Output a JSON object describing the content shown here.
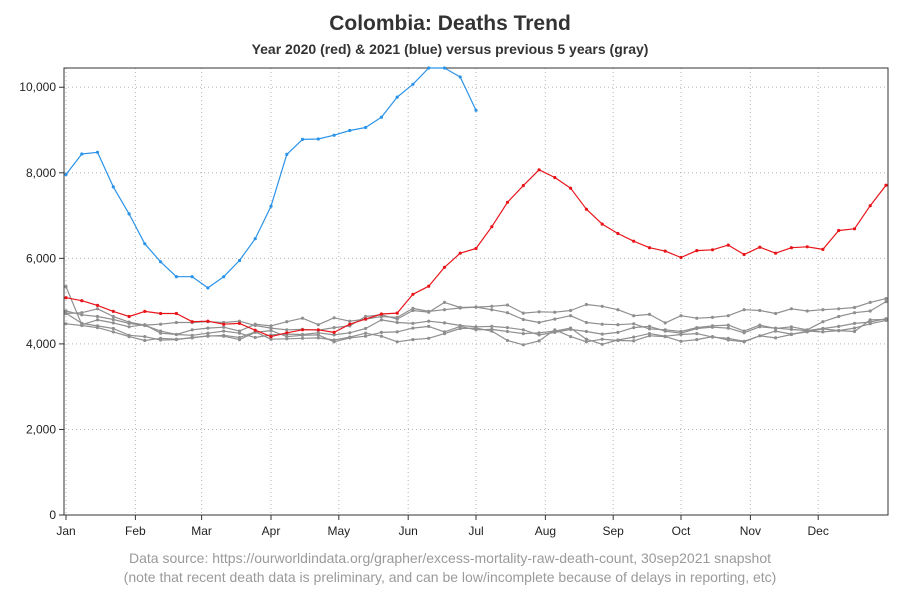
{
  "chart_data": {
    "type": "line",
    "title": "Colombia: Deaths Trend",
    "subtitle": "Year 2020 (red) & 2021 (blue) versus previous 5 years (gray)",
    "xlabel": "",
    "ylabel": "",
    "x_unit": "week of year",
    "xlim": [
      1,
      53
    ],
    "ylim": [
      0,
      10450
    ],
    "y_ticks": [
      0,
      2000,
      4000,
      6000,
      8000,
      10000
    ],
    "y_tick_labels": [
      "0",
      "2,000",
      "4,000",
      "6,000",
      "8,000",
      "10,000"
    ],
    "x_ticks": [
      1,
      5.4,
      9.6,
      14,
      18.3,
      22.7,
      27,
      31.4,
      35.7,
      40,
      44.4,
      48.7
    ],
    "x_tick_labels": [
      "Jan",
      "Feb",
      "Mar",
      "Apr",
      "May",
      "Jun",
      "Jul",
      "Aug",
      "Sep",
      "Oct",
      "Nov",
      "Dec"
    ],
    "grid": true,
    "colors": {
      "y2020": "#e8141a",
      "y2021": "#2b93e8",
      "previous": "#8f8f8f",
      "grid": "#b5b5b5"
    },
    "series": [
      {
        "name": "2021",
        "color_key": "y2021",
        "x_start": 1,
        "values": [
          7960,
          8440,
          8480,
          7670,
          7040,
          6340,
          5920,
          5570,
          5570,
          5310,
          5570,
          5950,
          6460,
          7220,
          8430,
          8780,
          8790,
          8880,
          8990,
          9060,
          9300,
          9770,
          10070,
          10450,
          10450,
          10240,
          9460
        ]
      },
      {
        "name": "2020",
        "color_key": "y2020",
        "x_start": 1,
        "values": [
          5080,
          5010,
          4900,
          4760,
          4640,
          4760,
          4710,
          4710,
          4520,
          4530,
          4460,
          4480,
          4320,
          4170,
          4260,
          4330,
          4330,
          4270,
          4460,
          4580,
          4700,
          4720,
          5160,
          5350,
          5790,
          6120,
          6230,
          6740,
          7310,
          7700,
          8070,
          7890,
          7640,
          7150,
          6800,
          6580,
          6400,
          6250,
          6170,
          6020,
          6180,
          6200,
          6310,
          6090,
          6260,
          6120,
          6250,
          6270,
          6210,
          6650,
          6690,
          7230,
          7710
        ]
      },
      {
        "name": "previous year 1",
        "color_key": "previous",
        "x_start": 1,
        "values": [
          5340,
          4450,
          4560,
          4490,
          4400,
          4450,
          4250,
          4220,
          4330,
          4370,
          4390,
          4300,
          4460,
          4420,
          4520,
          4600,
          4450,
          4610,
          4530,
          4580,
          4640,
          4620,
          4830,
          4760,
          4800,
          4840,
          4860,
          4880,
          4910,
          4720,
          4750,
          4740,
          4780,
          4920,
          4880,
          4800,
          4660,
          4690,
          4490,
          4660,
          4600,
          4620,
          4660,
          4800,
          4780,
          4710,
          4820,
          4770,
          4800,
          4820,
          4850,
          4970,
          5060
        ]
      },
      {
        "name": "previous year 2",
        "color_key": "previous",
        "x_start": 1,
        "values": [
          4710,
          4730,
          4820,
          4640,
          4510,
          4440,
          4460,
          4500,
          4500,
          4520,
          4500,
          4530,
          4430,
          4370,
          4330,
          4340,
          4320,
          4380,
          4420,
          4640,
          4680,
          4580,
          4780,
          4740,
          4970,
          4850,
          4860,
          4800,
          4730,
          4570,
          4500,
          4580,
          4660,
          4500,
          4460,
          4450,
          4470,
          4350,
          4330,
          4290,
          4380,
          4420,
          4440,
          4300,
          4440,
          4360,
          4400,
          4330,
          4520,
          4640,
          4730,
          4770,
          4990
        ]
      },
      {
        "name": "previous year 3",
        "color_key": "previous",
        "x_start": 1,
        "values": [
          4770,
          4680,
          4640,
          4570,
          4480,
          4430,
          4300,
          4220,
          4200,
          4250,
          4300,
          4250,
          4150,
          4210,
          4230,
          4220,
          4260,
          4210,
          4260,
          4360,
          4560,
          4500,
          4480,
          4530,
          4490,
          4430,
          4400,
          4410,
          4380,
          4330,
          4210,
          4270,
          4340,
          4290,
          4230,
          4270,
          4380,
          4410,
          4300,
          4250,
          4360,
          4390,
          4370,
          4260,
          4400,
          4370,
          4340,
          4310,
          4360,
          4410,
          4480,
          4510,
          4590
        ]
      },
      {
        "name": "previous year 4",
        "color_key": "previous",
        "x_start": 1,
        "values": [
          4720,
          4480,
          4420,
          4360,
          4200,
          4170,
          4090,
          4100,
          4150,
          4180,
          4200,
          4150,
          4280,
          4110,
          4120,
          4130,
          4140,
          4090,
          4160,
          4250,
          4180,
          4050,
          4100,
          4130,
          4240,
          4360,
          4370,
          4300,
          4080,
          3980,
          4070,
          4330,
          4170,
          4050,
          4110,
          4080,
          4070,
          4190,
          4170,
          4060,
          4100,
          4170,
          4090,
          4050,
          4190,
          4300,
          4230,
          4280,
          4350,
          4310,
          4290,
          4560,
          4570
        ]
      },
      {
        "name": "previous year 5",
        "color_key": "previous",
        "x_start": 1,
        "values": [
          4470,
          4430,
          4380,
          4280,
          4170,
          4080,
          4130,
          4110,
          4140,
          4190,
          4180,
          4100,
          4270,
          4310,
          4170,
          4200,
          4210,
          4050,
          4140,
          4180,
          4270,
          4280,
          4370,
          4410,
          4280,
          4410,
          4330,
          4340,
          4290,
          4240,
          4260,
          4300,
          4370,
          4110,
          3990,
          4090,
          4160,
          4240,
          4180,
          4220,
          4240,
          4160,
          4130,
          4060,
          4190,
          4140,
          4220,
          4300,
          4280,
          4310,
          4370,
          4470,
          4550
        ]
      }
    ]
  },
  "footer": {
    "source_line": "Data source: https://ourworldindata.org/grapher/excess-mortality-raw-death-count, 30sep2021 snapshot",
    "note_line": "(note that recent death data is preliminary, and can be low/incomplete because of delays in reporting, etc)"
  }
}
